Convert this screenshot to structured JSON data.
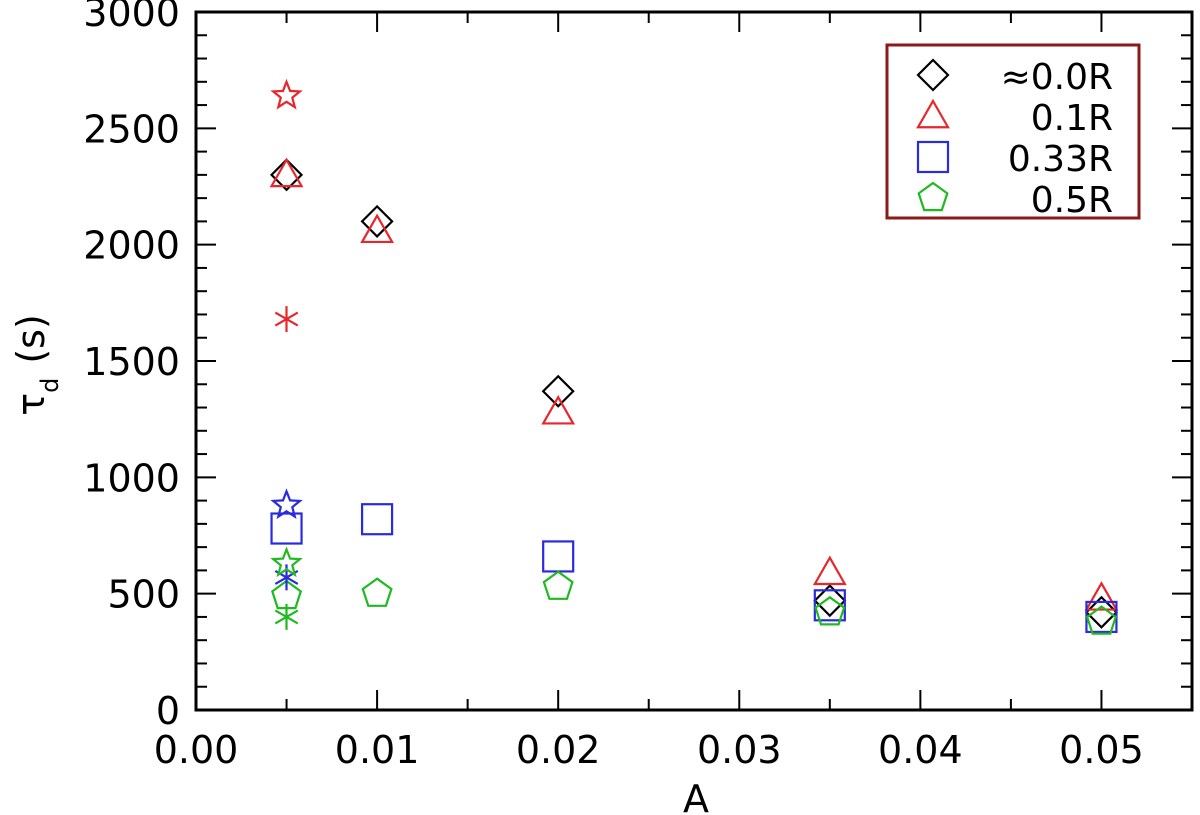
{
  "chart_data": {
    "type": "scatter",
    "xlabel": "A",
    "ylabel": "τ",
    "ylabel_subscript": "d",
    "ylabel_unit": "(s)",
    "xlim": [
      0.0,
      0.055
    ],
    "ylim": [
      0,
      3000
    ],
    "x_ticks": [
      "0.00",
      "0.01",
      "0.02",
      "0.03",
      "0.04",
      "0.05"
    ],
    "y_ticks": [
      "0",
      "500",
      "1000",
      "1500",
      "2000",
      "2500",
      "3000"
    ],
    "legend_position": "top-right",
    "legend_border_color": "#8b1a1a",
    "series": [
      {
        "name": "≈0.0R",
        "marker": "diamond",
        "color": "#000000",
        "points": [
          [
            0.005,
            2300
          ],
          [
            0.01,
            2100
          ],
          [
            0.02,
            1370
          ],
          [
            0.035,
            470
          ],
          [
            0.05,
            420
          ]
        ]
      },
      {
        "name": "0.1R",
        "marker": "triangle",
        "color": "#e8262b",
        "points": [
          [
            0.005,
            2300
          ],
          [
            0.01,
            2060
          ],
          [
            0.02,
            1280
          ],
          [
            0.035,
            590
          ],
          [
            0.05,
            480
          ]
        ]
      },
      {
        "name": "0.33R",
        "marker": "square",
        "color": "#2a2adf",
        "points": [
          [
            0.005,
            780
          ],
          [
            0.01,
            820
          ],
          [
            0.02,
            660
          ],
          [
            0.035,
            450
          ],
          [
            0.05,
            400
          ]
        ]
      },
      {
        "name": "0.5R",
        "marker": "pentagon",
        "color": "#1fba1f",
        "points": [
          [
            0.005,
            490
          ],
          [
            0.01,
            500
          ],
          [
            0.02,
            530
          ],
          [
            0.035,
            420
          ],
          [
            0.05,
            380
          ]
        ]
      }
    ],
    "extra_points": [
      {
        "marker": "star",
        "color": "#e8262b",
        "x": 0.005,
        "y": 2640
      },
      {
        "marker": "asterisk",
        "color": "#e8262b",
        "x": 0.005,
        "y": 1680
      },
      {
        "marker": "star",
        "color": "#2a2adf",
        "x": 0.005,
        "y": 880
      },
      {
        "marker": "asterisk",
        "color": "#2a2adf",
        "x": 0.005,
        "y": 570
      },
      {
        "marker": "star",
        "color": "#1fba1f",
        "x": 0.005,
        "y": 630
      },
      {
        "marker": "asterisk",
        "color": "#1fba1f",
        "x": 0.005,
        "y": 400
      }
    ]
  }
}
